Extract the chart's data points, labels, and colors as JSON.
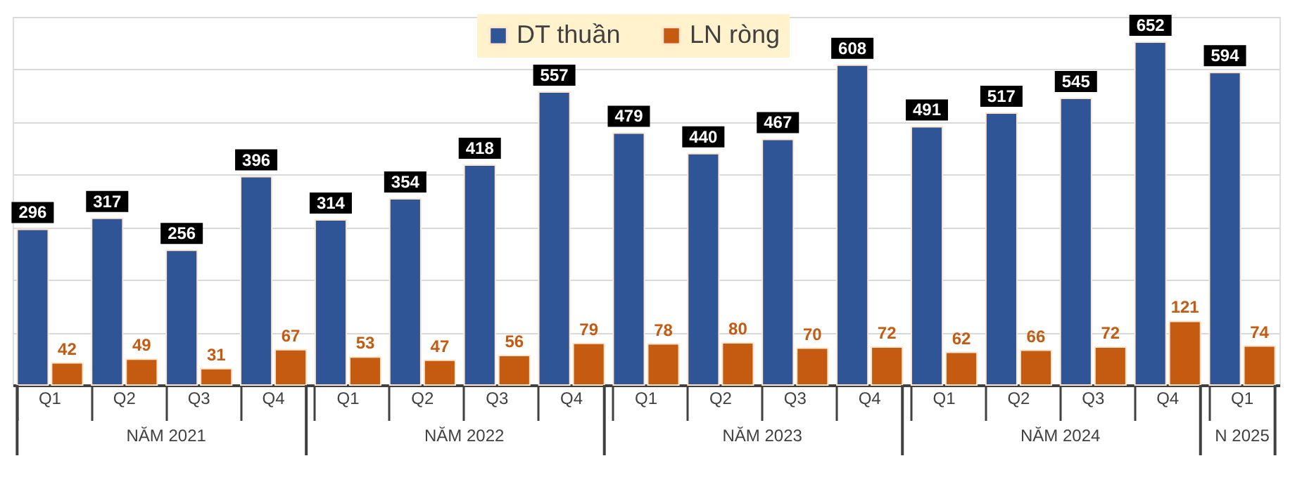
{
  "chart_data": {
    "type": "bar",
    "categories": [
      "Q1",
      "Q2",
      "Q3",
      "Q4",
      "Q1",
      "Q2",
      "Q3",
      "Q4",
      "Q1",
      "Q2",
      "Q3",
      "Q4",
      "Q1",
      "Q2",
      "Q3",
      "Q4",
      "Q1"
    ],
    "series": [
      {
        "name": "DT thuần",
        "color": "#2f5597",
        "values": [
          296,
          317,
          256,
          396,
          314,
          354,
          418,
          557,
          479,
          440,
          467,
          608,
          491,
          517,
          545,
          652,
          594
        ]
      },
      {
        "name": "LN ròng",
        "color": "#c55a11",
        "values": [
          42,
          49,
          31,
          67,
          53,
          47,
          56,
          79,
          78,
          80,
          70,
          72,
          62,
          66,
          72,
          121,
          74
        ]
      }
    ],
    "annotations": [
      "NĂM 2021",
      "NĂM 2022",
      "NĂM 2023",
      "NĂM 2024",
      "N 2025"
    ],
    "grid": "y",
    "legend": "top",
    "data_labels": true
  }
}
